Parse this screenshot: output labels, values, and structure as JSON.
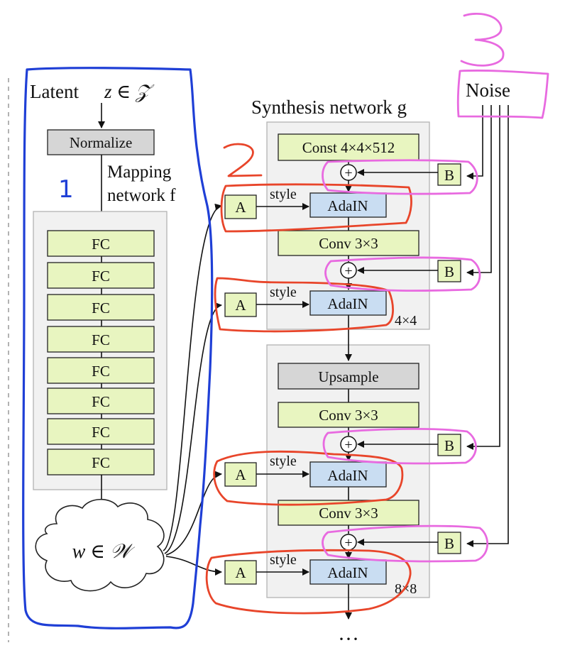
{
  "latent_label": "Latent",
  "latent_var": "z ∈ 𝒵",
  "normalize_label": "Normalize",
  "mapping_label_1": "Mapping",
  "mapping_label_2": "network f",
  "fc_label": "FC",
  "w_label": "w ∈ 𝒲",
  "synthesis_label": "Synthesis network g",
  "noise_label": "Noise",
  "const_label": "Const 4×4×512",
  "conv_label": "Conv 3×3",
  "upsample_label": "Upsample",
  "adain_label": "AdaIN",
  "a_label": "A",
  "b_label": "B",
  "style_label": "style",
  "plus_label": "+",
  "res_4": "4×4",
  "res_8": "8×8",
  "ellipsis": "···",
  "annotations": {
    "num_1": "1",
    "num_2": "2",
    "num_3": "3"
  }
}
